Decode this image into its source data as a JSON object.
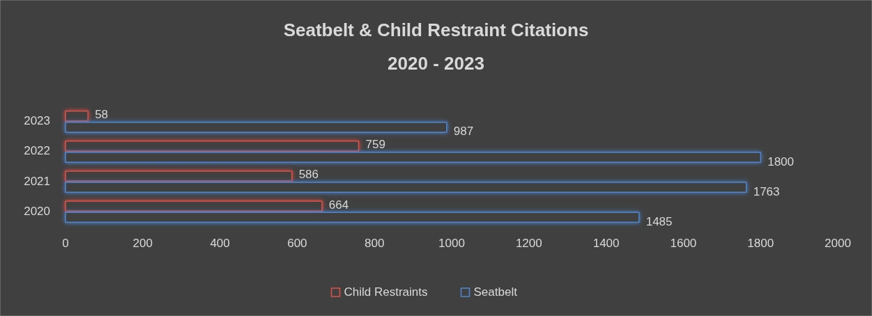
{
  "chart_data": {
    "type": "bar",
    "orientation": "horizontal",
    "title": "Seatbelt & Child Restraint Citations",
    "subtitle": "2020 - 2023",
    "categories": [
      "2023",
      "2022",
      "2021",
      "2020"
    ],
    "series": [
      {
        "name": "Child Restraints",
        "color": "#e0504a",
        "values": [
          58,
          759,
          586,
          664
        ]
      },
      {
        "name": "Seatbelt",
        "color": "#4f86d0",
        "values": [
          987,
          1800,
          1763,
          1485
        ]
      }
    ],
    "xlim": [
      0,
      2000
    ],
    "xticks": [
      0,
      200,
      400,
      600,
      800,
      1000,
      1200,
      1400,
      1600,
      1800,
      2000
    ],
    "data_labels": true,
    "grid": false,
    "legend": "bottom"
  }
}
